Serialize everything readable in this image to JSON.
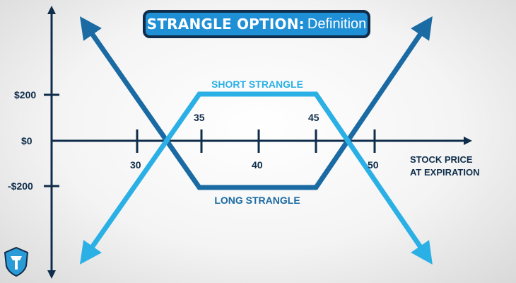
{
  "title": {
    "main": "STRANGLE OPTION:",
    "sub": "Definition"
  },
  "axes": {
    "x_label_line1": "STOCK PRICE",
    "x_label_line2": "AT EXPIRATION",
    "x_ticks": [
      "30",
      "40",
      "50"
    ],
    "y_ticks": [
      "$200",
      "$0",
      "-$200"
    ]
  },
  "strikes": {
    "lower": "35",
    "upper": "45"
  },
  "series": {
    "short": {
      "label": "SHORT STRANGLE",
      "color": "#2bb0e6"
    },
    "long": {
      "label": "LONG STRANGLE",
      "color": "#1a6aa3"
    }
  },
  "colors": {
    "axis": "#0f2d4a",
    "title_bg": "#1f8fd6",
    "title_border": "#0f2d4a"
  },
  "icons": {
    "logo": "shield-logo-icon"
  }
}
